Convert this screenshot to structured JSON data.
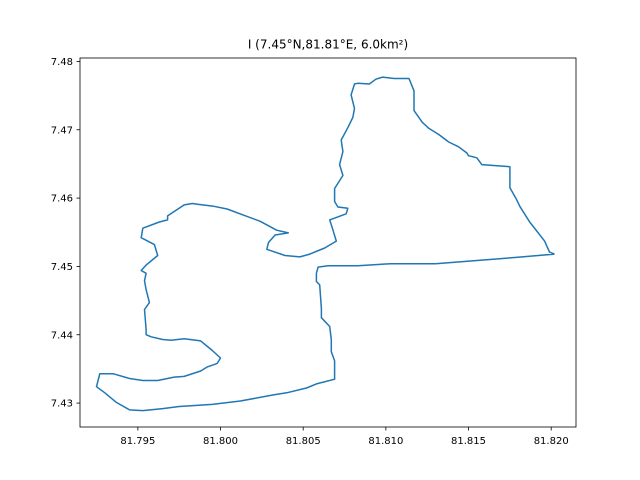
{
  "chart_data": {
    "type": "line",
    "title": "I (7.45°N,81.81°E,  6.0km²)",
    "xlabel": "",
    "ylabel": "",
    "xlim": [
      81.7915,
      81.8215
    ],
    "ylim": [
      7.4265,
      7.4805
    ],
    "x_ticks": [
      81.795,
      81.8,
      81.805,
      81.81,
      81.815,
      81.82
    ],
    "x_tick_labels": [
      "81.795",
      "81.800",
      "81.805",
      "81.810",
      "81.815",
      "81.820"
    ],
    "y_ticks": [
      7.43,
      7.44,
      7.45,
      7.46,
      7.47,
      7.48
    ],
    "y_tick_labels": [
      "7.43",
      "7.44",
      "7.45",
      "7.46",
      "7.47",
      "7.48"
    ],
    "grid": false,
    "line_color": "#1f77b4",
    "series": [
      {
        "x": [
          81.8202,
          81.8178,
          81.813,
          81.8103,
          81.8083,
          81.8065,
          81.8059,
          81.8058,
          81.8058,
          81.806,
          81.8061,
          81.8061,
          81.8066,
          81.8067,
          81.8067,
          81.8069,
          81.8069,
          81.8058,
          81.8052,
          81.804,
          81.8032,
          81.8012,
          81.7995,
          81.7975,
          81.7965,
          81.7953,
          81.7945,
          81.7937,
          81.793,
          81.7925,
          81.7927,
          81.7935,
          81.7945,
          81.7953,
          81.7962,
          81.7972,
          81.7978,
          81.7988,
          81.7992,
          81.7998,
          81.8,
          81.7995,
          81.7988,
          81.7978,
          81.797,
          81.7965,
          81.7958,
          81.7955,
          81.7955,
          81.7954,
          81.7957,
          81.7955,
          81.7954,
          81.7955,
          81.7952,
          81.7955,
          81.7962,
          81.796,
          81.7952,
          81.7953,
          81.7963,
          81.7968,
          81.7968,
          81.7978,
          81.7983,
          81.7986,
          81.7996,
          81.8004,
          81.8014,
          81.8024,
          81.8034,
          81.8041,
          81.8033,
          81.8029,
          81.8028,
          81.8039,
          81.8048,
          81.8054,
          81.8063,
          81.807,
          81.8068,
          81.8066,
          81.8076,
          81.8077,
          81.8071,
          81.8069,
          81.8069,
          81.8074,
          81.8072,
          81.8074,
          81.8073,
          81.8077,
          81.808,
          81.8081,
          81.8079,
          81.8081,
          81.8083,
          81.809,
          81.8094,
          81.8098,
          81.8105,
          81.8114,
          81.8117,
          81.8117,
          81.8122,
          81.8126,
          81.8132,
          81.8138,
          81.8144,
          81.8149,
          81.815,
          81.8155,
          81.8158,
          81.8175,
          81.8175,
          81.8179,
          81.8181,
          81.8187,
          81.8196,
          81.8199,
          81.8202
        ],
        "y": [
          7.4518,
          7.4513,
          7.4504,
          7.4504,
          7.4501,
          7.4501,
          7.4499,
          7.449,
          7.4478,
          7.4473,
          7.4438,
          7.4425,
          7.4412,
          7.4393,
          7.4375,
          7.4362,
          7.4335,
          7.4328,
          7.4322,
          7.4315,
          7.4312,
          7.4303,
          7.4298,
          7.4295,
          7.4292,
          7.4289,
          7.429,
          7.4301,
          7.4315,
          7.4324,
          7.4343,
          7.4343,
          7.4336,
          7.4333,
          7.4333,
          7.4338,
          7.4339,
          7.4347,
          7.4353,
          7.4358,
          7.4366,
          7.4377,
          7.4391,
          7.4394,
          7.4392,
          7.4393,
          7.4397,
          7.44,
          7.4408,
          7.4437,
          7.4447,
          7.4466,
          7.4479,
          7.449,
          7.4494,
          7.4502,
          7.4516,
          7.4532,
          7.4542,
          7.4556,
          7.4565,
          7.4568,
          7.4574,
          7.459,
          7.4592,
          7.4591,
          7.4588,
          7.4584,
          7.4575,
          7.4566,
          7.4553,
          7.4549,
          7.4546,
          7.4535,
          7.4525,
          7.4516,
          7.4514,
          7.4518,
          7.4527,
          7.4537,
          7.4553,
          7.4568,
          7.4577,
          7.4585,
          7.4587,
          7.4595,
          7.4614,
          7.4633,
          7.4649,
          7.4668,
          7.4685,
          7.4703,
          7.4718,
          7.4731,
          7.4751,
          7.4767,
          7.4768,
          7.4767,
          7.4774,
          7.4777,
          7.4775,
          7.4775,
          7.4757,
          7.4728,
          7.4711,
          7.4702,
          7.4693,
          7.4682,
          7.4675,
          7.4666,
          7.4662,
          7.4659,
          7.4649,
          7.4646,
          7.4615,
          7.4598,
          7.4588,
          7.4565,
          7.4537,
          7.4521,
          7.4518
        ]
      }
    ]
  }
}
